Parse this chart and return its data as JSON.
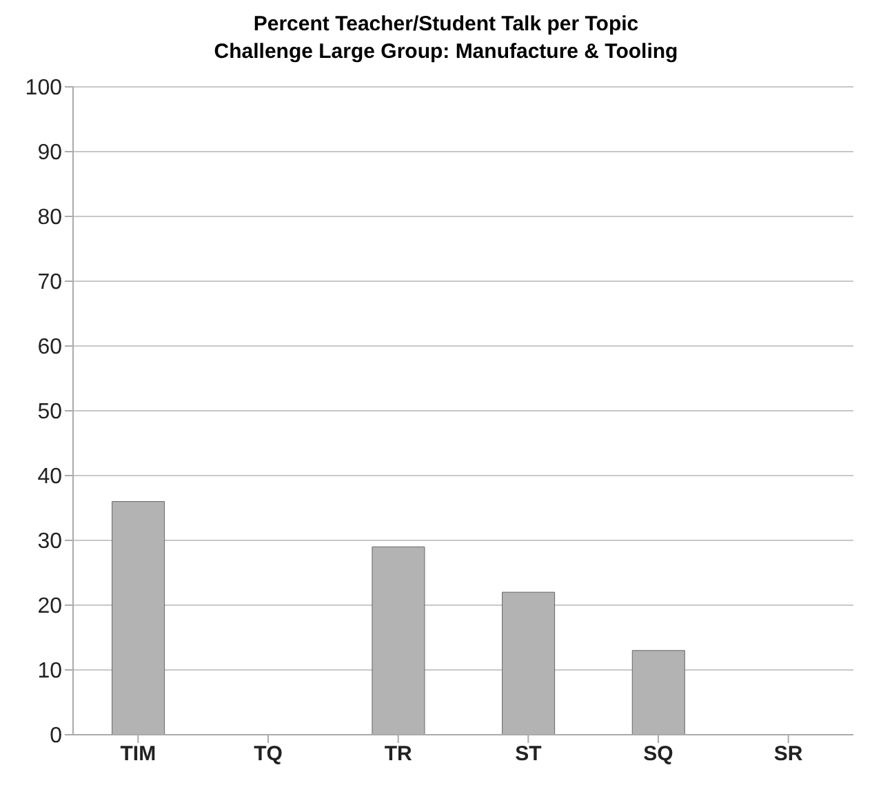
{
  "chart_data": {
    "type": "bar",
    "title": "Percent Teacher/Student Talk per Topic\nChallenge Large Group: Manufacture & Tooling",
    "categories": [
      "TIM",
      "TQ",
      "TR",
      "ST",
      "SQ",
      "SR"
    ],
    "values": [
      36,
      0,
      29,
      22,
      13,
      0
    ],
    "color": "#b3b3b3",
    "ylim": [
      0,
      100
    ],
    "yticks": [
      0,
      10,
      20,
      30,
      40,
      50,
      60,
      70,
      80,
      90,
      100
    ],
    "grid": "y"
  }
}
